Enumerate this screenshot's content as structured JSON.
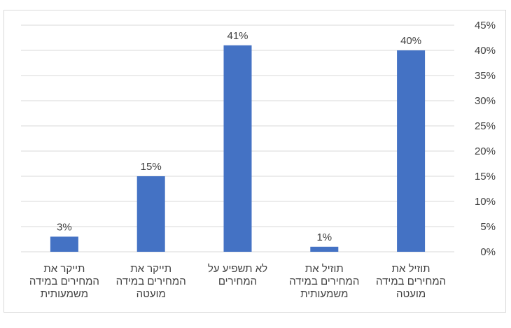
{
  "chart_data": {
    "type": "bar",
    "categories": [
      [
        "תוזיל את",
        "המחירים במידה",
        "מועטה"
      ],
      [
        "תוזיל את",
        "המחירים במידה",
        "משמעותית"
      ],
      [
        "לא תשפיע על",
        "המחירים"
      ],
      [
        "תייקר את",
        "המחירים במידה",
        "מועטה"
      ],
      [
        "תייקר את",
        "המחירים במידה",
        "משמעותית"
      ]
    ],
    "values": [
      40,
      1,
      41,
      15,
      3
    ],
    "value_labels": [
      "40%",
      "1%",
      "41%",
      "15%",
      "3%"
    ],
    "ylim": [
      0,
      45
    ],
    "yticks": [
      0,
      5,
      10,
      15,
      20,
      25,
      30,
      35,
      40,
      45
    ],
    "ytick_labels": [
      "0%",
      "5%",
      "10%",
      "15%",
      "20%",
      "25%",
      "30%",
      "35%",
      "40%",
      "45%"
    ],
    "y_axis_side": "right",
    "category_order": "right-to-left",
    "grid": true,
    "legend": "none",
    "bar_color": "#4472c4",
    "grid_color": "#d9d9d9"
  }
}
